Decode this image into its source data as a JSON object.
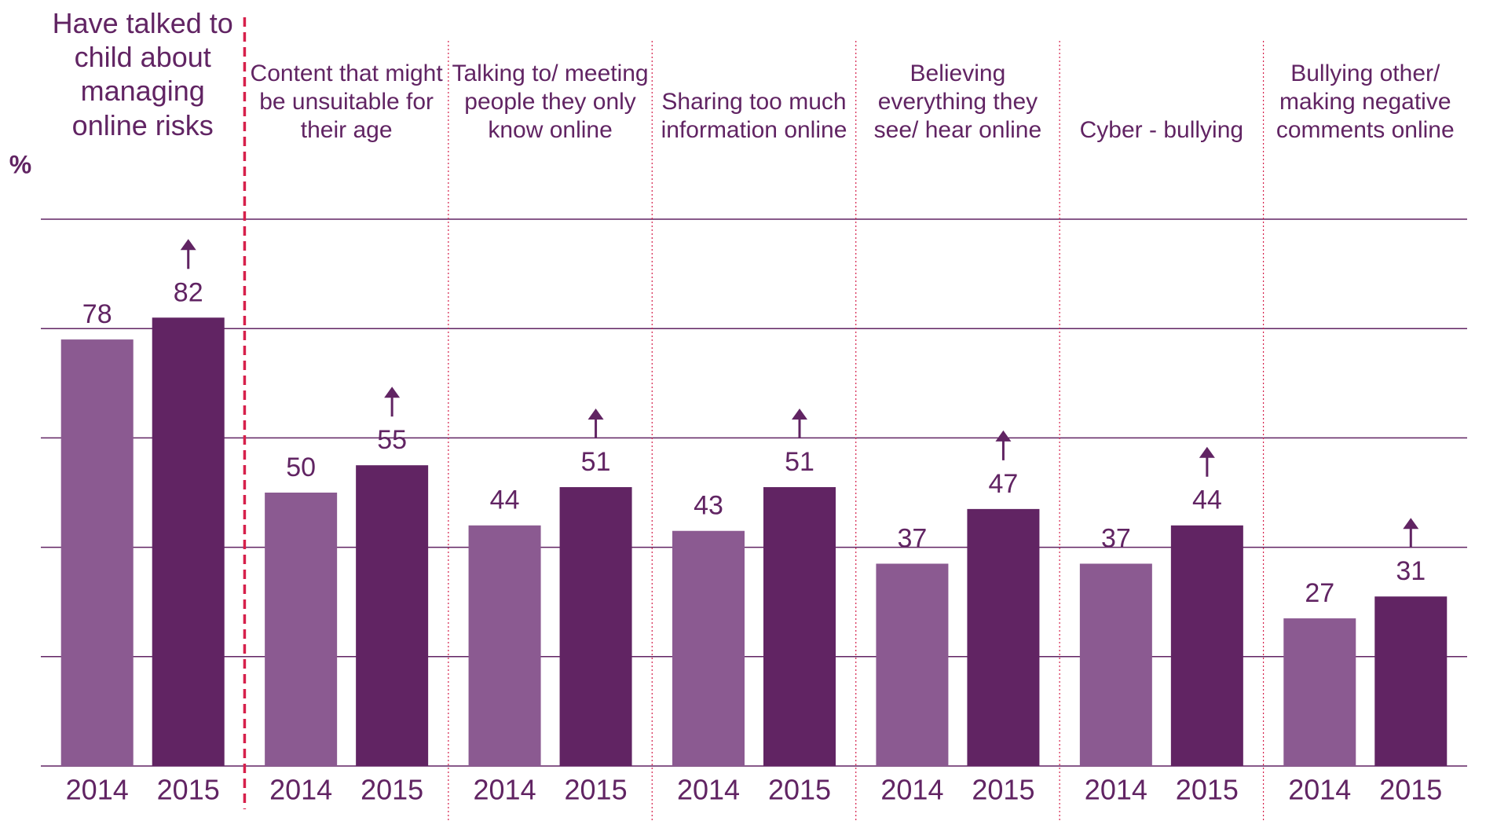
{
  "chart_data": {
    "type": "bar",
    "y_label": "%",
    "categories": [
      "Have talked to child about managing online risks",
      "Content that might be unsuitable for their age",
      "Talking to/ meeting people they only know online",
      "Sharing too much information online",
      "Believing everything they see/ hear online",
      "Cyber - bullying",
      "Bullying other/ making negative comments online"
    ],
    "series": [
      {
        "name": "2014",
        "color": "#8b5a91",
        "values": [
          78,
          50,
          44,
          43,
          37,
          37,
          27
        ]
      },
      {
        "name": "2015",
        "color": "#612463",
        "values": [
          82,
          55,
          51,
          51,
          47,
          44,
          31
        ],
        "arrow": true
      }
    ],
    "ylim": [
      0,
      100
    ],
    "yticks": [
      0,
      20,
      40,
      60,
      80,
      100
    ],
    "grid": true
  }
}
